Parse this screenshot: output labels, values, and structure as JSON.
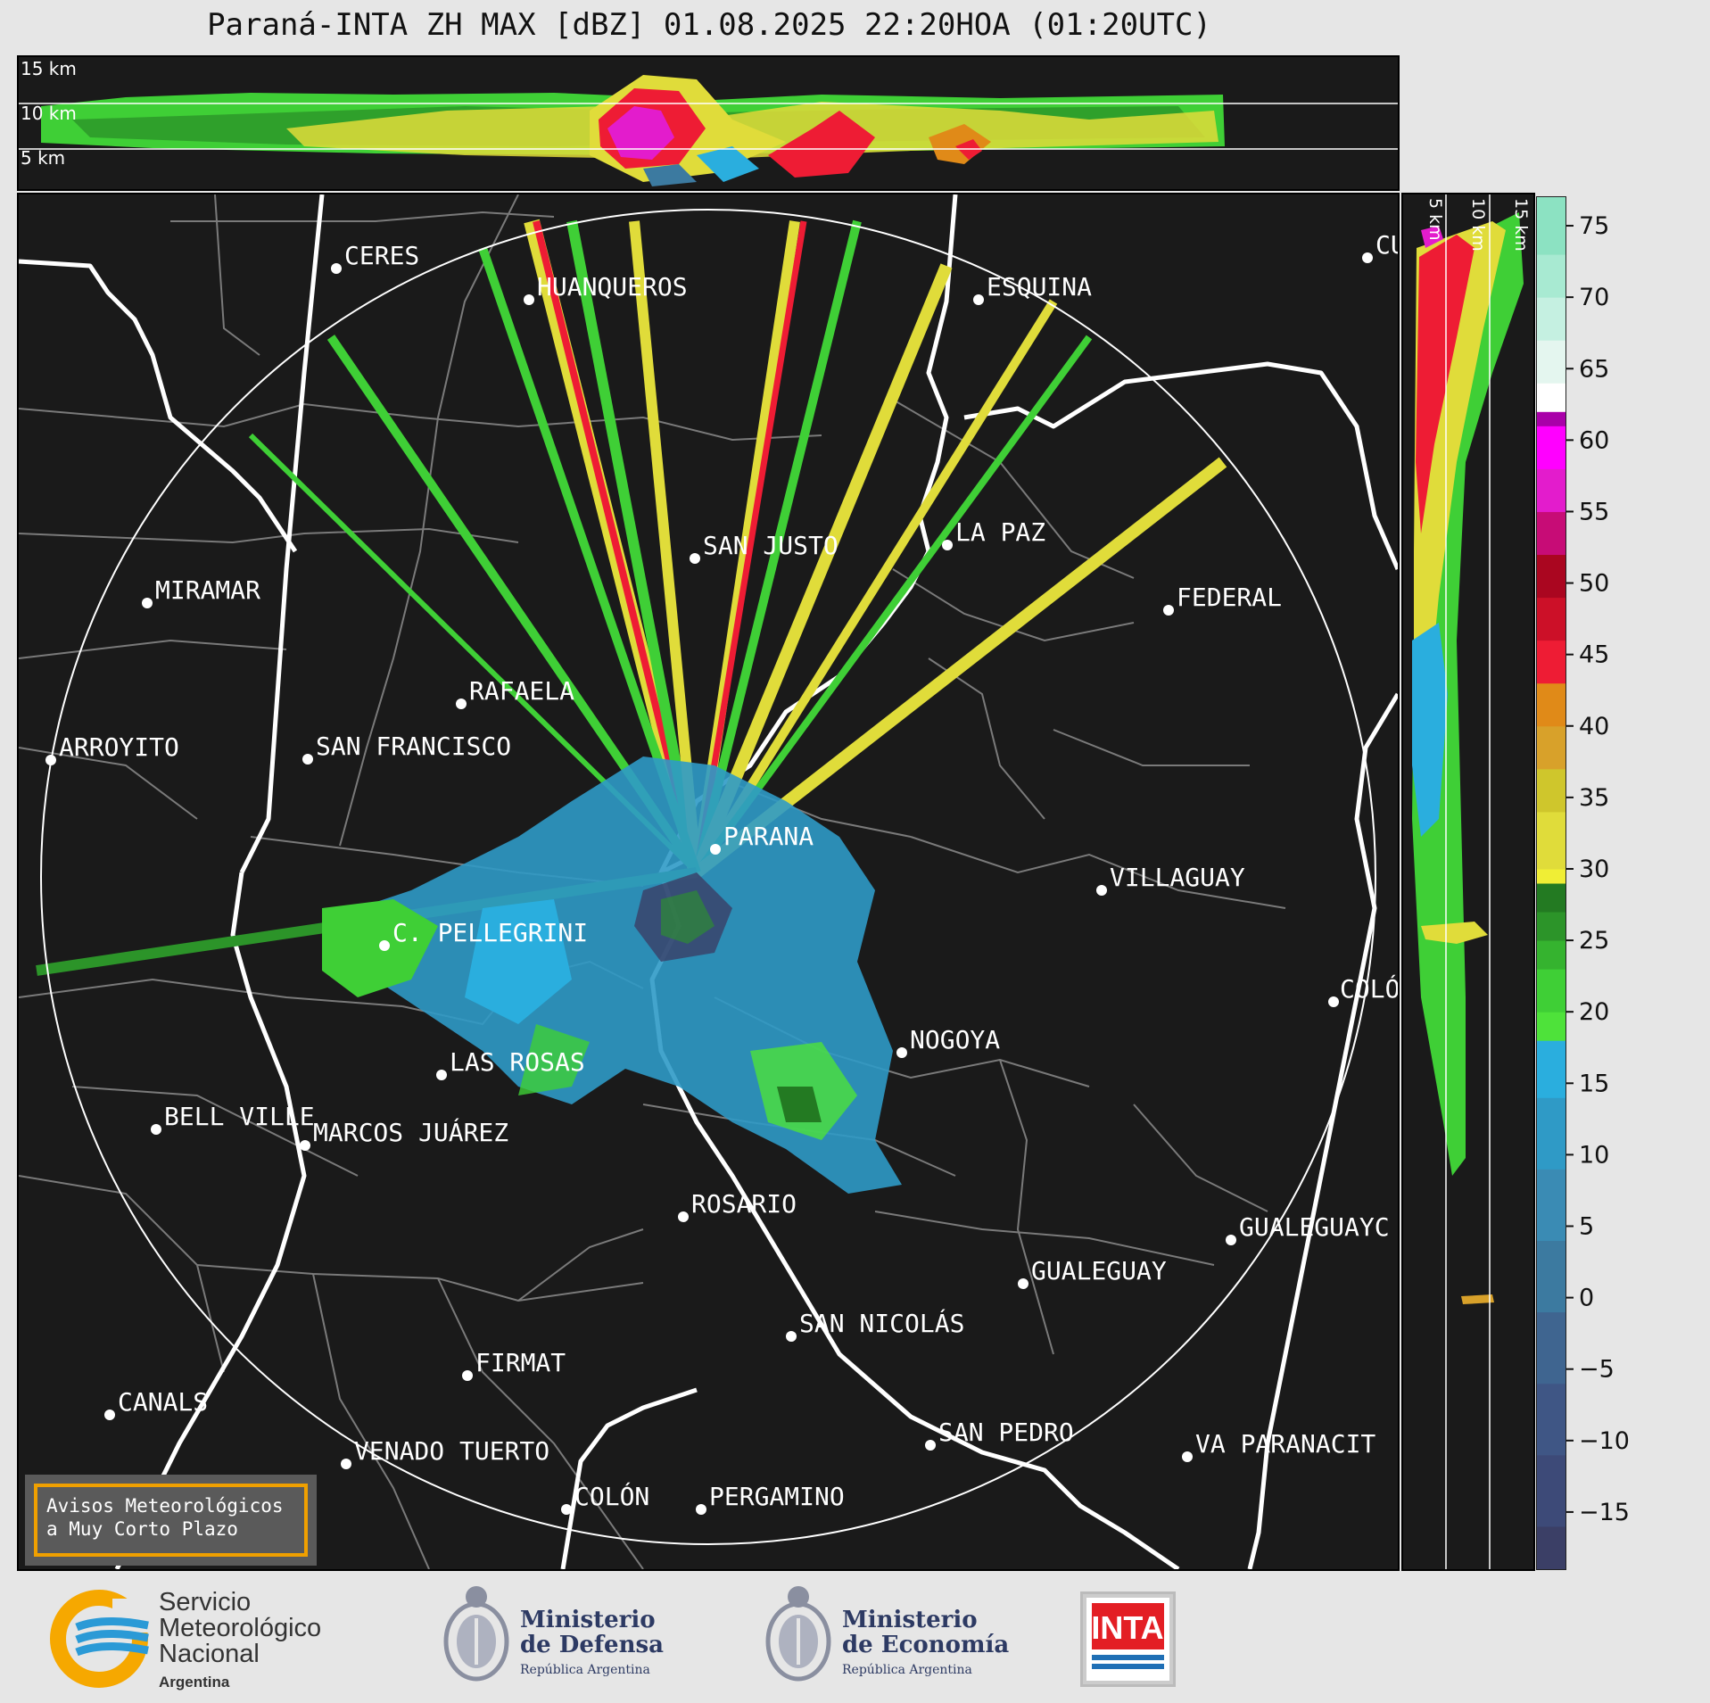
{
  "title": "Paraná-INTA ZH MAX [dBZ] 01.08.2025 22:20HOA (01:20UTC)",
  "top_panel": {
    "height_labels": [
      "15 km",
      "10 km",
      "5 km"
    ]
  },
  "side_panel": {
    "height_labels": [
      "5 km",
      "10 km",
      "15 km"
    ]
  },
  "colorbar": {
    "ticks": [
      "75",
      "70",
      "65",
      "60",
      "55",
      "50",
      "45",
      "40",
      "35",
      "30",
      "25",
      "20",
      "15",
      "10",
      "5",
      "0",
      "−5",
      "−10",
      "−15"
    ],
    "min": -19,
    "max": 77,
    "colors": [
      "#3b3f66",
      "#3d4a78",
      "#3f5685",
      "#3f6590",
      "#3c7aa0",
      "#3a8bb4",
      "#2f9ac6",
      "#2aaede",
      "#4ee23a",
      "#3fcf36",
      "#35b32f",
      "#2c9429",
      "#237a22",
      "#f0ee35",
      "#e0dc3a",
      "#cfc62c",
      "#d8a12a",
      "#e08a18",
      "#ee1c34",
      "#cc1028",
      "#aa0620",
      "#c70c76",
      "#e31ccc",
      "#ff00ff",
      "#a900a9",
      "#ffffff",
      "#e4f6ef",
      "#c5f0e1",
      "#a8ead2",
      "#8ce2c2"
    ],
    "color_breaks": [
      -19,
      -16,
      -11,
      -6,
      -1,
      4,
      9,
      14,
      18,
      20,
      23,
      25,
      27,
      29,
      30,
      34,
      37,
      40,
      43,
      46,
      49,
      52,
      55,
      58,
      61,
      62,
      64,
      67,
      70,
      73,
      77
    ]
  },
  "map": {
    "radar_site": "PARANA",
    "cities": [
      {
        "name": "CERES"
      },
      {
        "name": "HUANQUEROS"
      },
      {
        "name": "ESQUINA"
      },
      {
        "name": "CU"
      },
      {
        "name": "MIRAMAR"
      },
      {
        "name": "SAN JUSTO"
      },
      {
        "name": "LA PAZ"
      },
      {
        "name": "FEDERAL"
      },
      {
        "name": "RAFAELA"
      },
      {
        "name": "ARROYITO"
      },
      {
        "name": "SAN FRANCISCO"
      },
      {
        "name": "PARANA"
      },
      {
        "name": "VILLAGUAY"
      },
      {
        "name": "C. PELLEGRINI"
      },
      {
        "name": "COLÓ"
      },
      {
        "name": "NOGOYA"
      },
      {
        "name": "LAS ROSAS"
      },
      {
        "name": "BELL VILLE"
      },
      {
        "name": "MARCOS JUÁREZ"
      },
      {
        "name": "ROSARIO"
      },
      {
        "name": "GUALEGUAYC"
      },
      {
        "name": "GUALEGUAY"
      },
      {
        "name": "SAN NICOLÁS"
      },
      {
        "name": "FIRMAT"
      },
      {
        "name": "CANALS"
      },
      {
        "name": "SAN PEDRO"
      },
      {
        "name": "VENADO TUERTO"
      },
      {
        "name": "VA PARANACIT"
      },
      {
        "name": "COLÓN"
      },
      {
        "name": "PERGAMINO"
      }
    ]
  },
  "notice": {
    "line1": "Avisos Meteorológicos",
    "line2": "a Muy Corto Plazo"
  },
  "footer": {
    "smn_line1": "Servicio",
    "smn_line2": "Meteorológico",
    "smn_line3": "Nacional",
    "smn_sub": "Argentina",
    "defensa_line1": "Ministerio",
    "defensa_line2": "de Defensa",
    "defensa_sub": "República Argentina",
    "economia_line1": "Ministerio",
    "economia_line2": "de Economía",
    "economia_sub": "República Argentina",
    "inta": "INTA"
  }
}
